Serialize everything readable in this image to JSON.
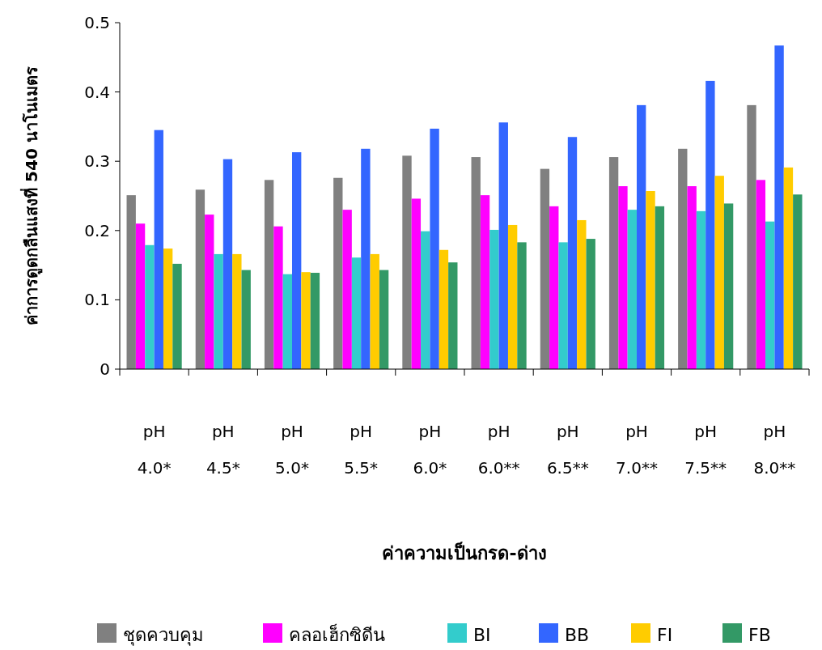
{
  "chart_data": {
    "type": "bar",
    "xlabel": "ค่าความเป็นกรด-ด่าง",
    "ylabel": "ค่าการดูดกลืนแสงที่ 540 นาโนเมตร",
    "categories": [
      "pH 4.0*",
      "pH 4.5*",
      "pH 5.0*",
      "pH 5.5*",
      "pH 6.0*",
      "pH 6.0**",
      "pH 6.5**",
      "pH 7.0**",
      "pH 7.5**",
      "pH 8.0**"
    ],
    "series": [
      {
        "name": "ชุดควบคุม",
        "color": "#808080",
        "values": [
          0.251,
          0.259,
          0.273,
          0.276,
          0.308,
          0.306,
          0.289,
          0.306,
          0.318,
          0.381
        ]
      },
      {
        "name": "คลอเฮ็กซิดีน",
        "color": "#ff00ff",
        "values": [
          0.21,
          0.223,
          0.206,
          0.23,
          0.246,
          0.251,
          0.235,
          0.264,
          0.264,
          0.273
        ]
      },
      {
        "name": "BI",
        "color": "#33cccc",
        "values": [
          0.179,
          0.166,
          0.137,
          0.161,
          0.199,
          0.201,
          0.183,
          0.23,
          0.228,
          0.213
        ]
      },
      {
        "name": "BB",
        "color": "#3366ff",
        "values": [
          0.345,
          0.303,
          0.313,
          0.318,
          0.347,
          0.356,
          0.335,
          0.381,
          0.416,
          0.467
        ]
      },
      {
        "name": "FI",
        "color": "#ffcc00",
        "values": [
          0.174,
          0.166,
          0.14,
          0.166,
          0.172,
          0.208,
          0.215,
          0.257,
          0.279,
          0.291
        ]
      },
      {
        "name": "FB",
        "color": "#339966",
        "values": [
          0.152,
          0.143,
          0.139,
          0.143,
          0.154,
          0.183,
          0.188,
          0.235,
          0.239,
          0.252
        ]
      }
    ],
    "ylim": [
      0,
      0.5
    ],
    "yticks": [
      0,
      0.1,
      0.2,
      0.3,
      0.4,
      0.5
    ],
    "grid": false,
    "legend": "bottom"
  }
}
